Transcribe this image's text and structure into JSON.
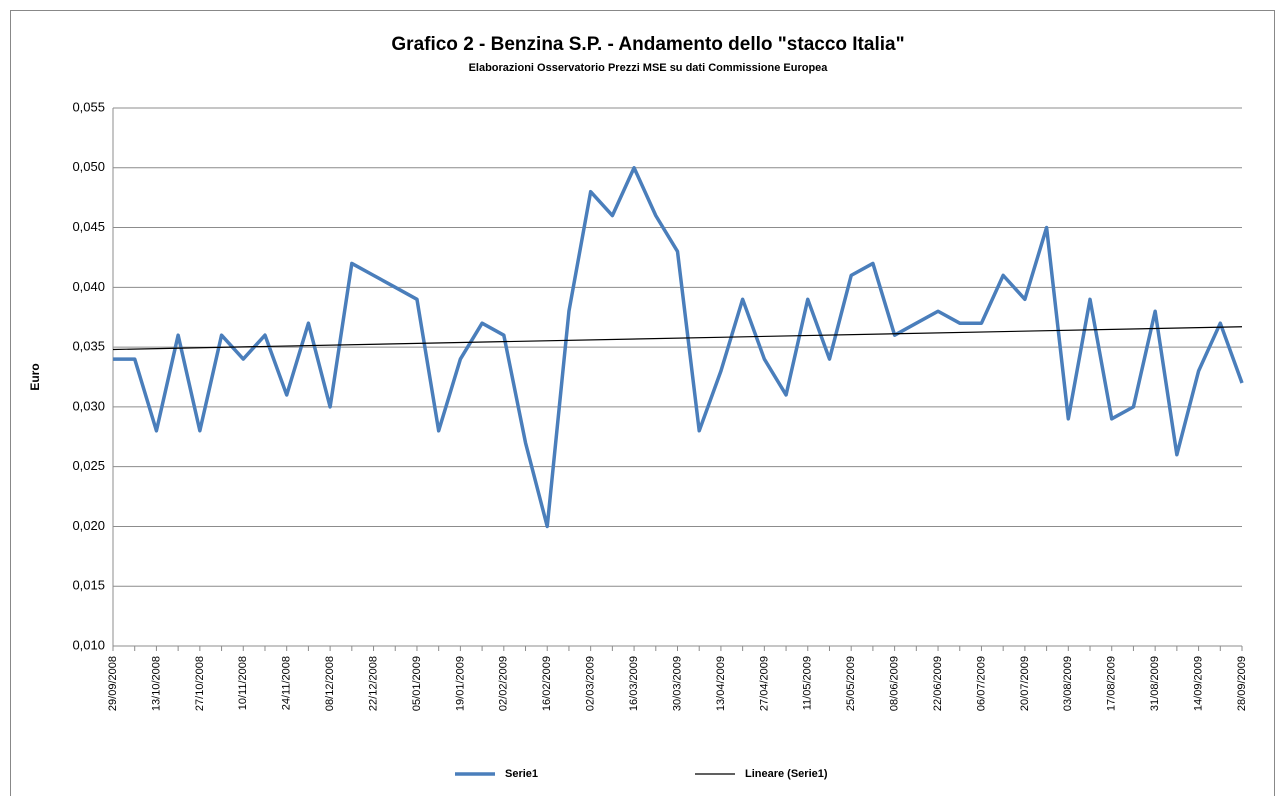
{
  "chart_data": {
    "type": "line",
    "title": "Grafico 2 - Benzina S.P. - Andamento dello \"stacco Italia\"",
    "subtitle": "Elaborazioni Osservatorio Prezzi MSE su dati Commissione Europea",
    "y_label": "Euro",
    "categories": [
      "29/09/2008",
      null,
      "13/10/2008",
      null,
      "27/10/2008",
      null,
      "10/11/2008",
      null,
      "24/11/2008",
      null,
      "08/12/2008",
      null,
      "22/12/2008",
      null,
      "05/01/2009",
      null,
      "19/01/2009",
      null,
      "02/02/2009",
      null,
      "16/02/2009",
      null,
      "02/03/2009",
      null,
      "16/03/2009",
      null,
      "30/03/2009",
      null,
      "13/04/2009",
      null,
      "27/04/2009",
      null,
      "11/05/2009",
      null,
      "25/05/2009",
      null,
      "08/06/2009",
      null,
      "22/06/2009",
      null,
      "06/07/2009",
      null,
      "20/07/2009",
      null,
      "03/08/2009",
      null,
      "17/08/2009",
      null,
      "31/08/2009",
      null,
      "14/09/2009",
      null,
      "28/09/2009"
    ],
    "series": [
      {
        "name": "Serie1",
        "color": "#4a7ebb",
        "values": [
          0.034,
          0.034,
          0.028,
          0.036,
          0.028,
          0.036,
          0.034,
          0.036,
          0.031,
          0.037,
          0.03,
          0.042,
          0.041,
          0.04,
          0.039,
          0.028,
          0.034,
          0.037,
          0.036,
          0.027,
          0.02,
          0.038,
          0.048,
          0.046,
          0.05,
          0.046,
          0.043,
          0.028,
          0.033,
          0.039,
          0.034,
          0.031,
          0.039,
          0.034,
          0.041,
          0.042,
          0.036,
          0.037,
          0.038,
          0.037,
          0.037,
          0.041,
          0.039,
          0.045,
          0.029,
          0.039,
          0.029,
          0.03,
          0.038,
          0.026,
          0.033,
          0.037,
          0.032
        ]
      }
    ],
    "trendline": {
      "name": "Lineare (Serie1)",
      "color": "#000000",
      "values": [
        0.0348,
        0.0367
      ]
    },
    "ylim": [
      0.01,
      0.055
    ],
    "yticks": [
      {
        "value": 0.01,
        "label": "0,010"
      },
      {
        "value": 0.015,
        "label": "0,015"
      },
      {
        "value": 0.02,
        "label": "0,020"
      },
      {
        "value": 0.025,
        "label": "0,025"
      },
      {
        "value": 0.03,
        "label": "0,030"
      },
      {
        "value": 0.035,
        "label": "0,035"
      },
      {
        "value": 0.04,
        "label": "0,040"
      },
      {
        "value": 0.045,
        "label": "0,045"
      },
      {
        "value": 0.05,
        "label": "0,050"
      },
      {
        "value": 0.055,
        "label": "0,055"
      }
    ],
    "grid": true,
    "legend": "bottom"
  }
}
